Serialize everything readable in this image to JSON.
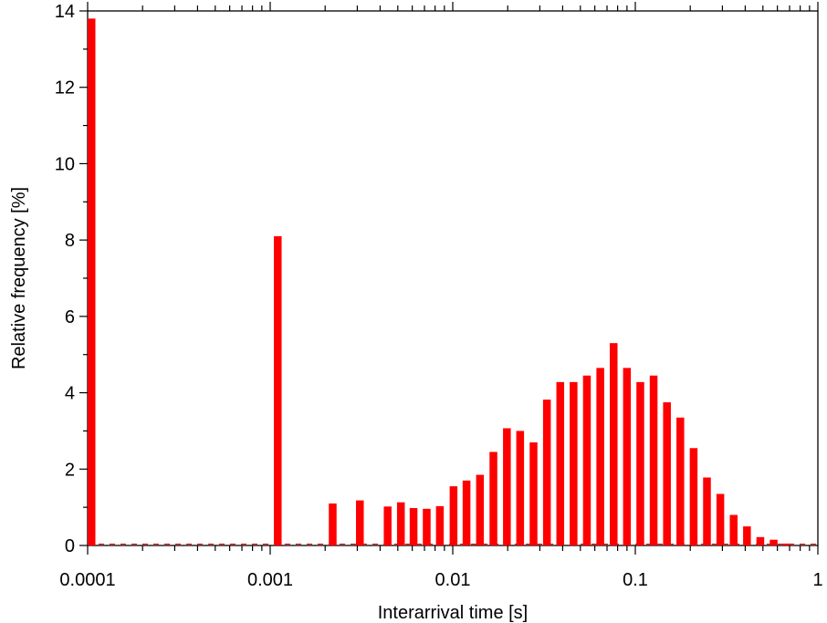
{
  "chart_data": {
    "type": "bar",
    "xscale": "log",
    "xlabel": "Interarrival time [s]",
    "ylabel": "Relative frequency [%]",
    "xlim": [
      0.0001,
      1
    ],
    "ylim": [
      0,
      14
    ],
    "x_ticks": [
      0.0001,
      0.001,
      0.01,
      0.1,
      1
    ],
    "x_tick_labels": [
      "0.0001",
      "0.001",
      "0.01",
      "0.1",
      "1"
    ],
    "y_ticks": [
      0,
      2,
      4,
      6,
      8,
      10,
      12,
      14
    ],
    "y_tick_labels": [
      "0",
      "2",
      "4",
      "6",
      "8",
      "10",
      "12",
      "14"
    ],
    "bar_color": "#ff0000",
    "grid": false,
    "legend": "none",
    "series": [
      {
        "x": [
          0.0001,
          0.0011,
          0.0022,
          0.0031,
          0.0044,
          0.0052,
          0.0061,
          0.0072,
          0.0085,
          0.0101,
          0.0119,
          0.0141,
          0.0167,
          0.0198,
          0.0234,
          0.0277,
          0.0328,
          0.0388,
          0.0459,
          0.0543,
          0.0643,
          0.0761,
          0.09,
          0.1065,
          0.126,
          0.1491,
          0.1764,
          0.2087,
          0.2469,
          0.2922,
          0.3457,
          0.409,
          0.4839,
          0.5726,
          0.6775
        ],
        "values": [
          13.8,
          8.1,
          1.1,
          1.18,
          1.02,
          1.13,
          0.98,
          0.96,
          1.03,
          1.55,
          1.7,
          1.85,
          2.45,
          3.07,
          3.0,
          2.7,
          3.82,
          4.28,
          4.28,
          4.45,
          4.65,
          5.3,
          4.65,
          4.28,
          4.45,
          3.75,
          3.35,
          2.55,
          1.78,
          1.35,
          0.8,
          0.5,
          0.22,
          0.15,
          0.05
        ]
      }
    ]
  }
}
